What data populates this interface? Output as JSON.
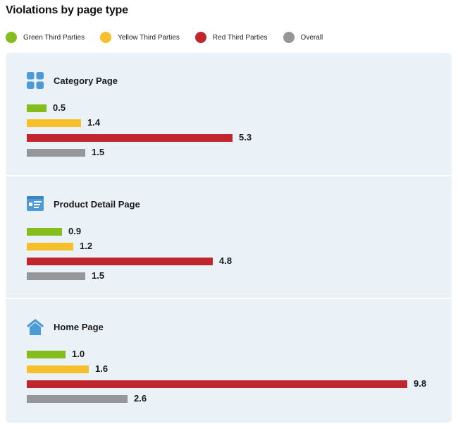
{
  "title": "Violations by page type",
  "legend": [
    {
      "label": "Green Third Parties",
      "color": "#84bd1c"
    },
    {
      "label": "Yellow Third Parties",
      "color": "#f7c02b"
    },
    {
      "label": "Red Third Parties",
      "color": "#c0262d"
    },
    {
      "label": "Overall",
      "color": "#949699"
    }
  ],
  "sections": [
    {
      "title": "Category Page",
      "icon": "grid-icon"
    },
    {
      "title": "Product Detail Page",
      "icon": "product-card-icon"
    },
    {
      "title": "Home Page",
      "icon": "house-icon"
    }
  ],
  "chart_data": {
    "type": "bar",
    "orientation": "horizontal",
    "title": "Violations by page type",
    "categories": [
      "Category Page",
      "Product Detail Page",
      "Home Page"
    ],
    "series": [
      {
        "name": "Green Third Parties",
        "color": "#84bd1c",
        "values": [
          0.5,
          0.9,
          1.0
        ],
        "labels": [
          "0.5",
          "0.9",
          "1.0"
        ]
      },
      {
        "name": "Yellow Third Parties",
        "color": "#f7c02b",
        "values": [
          1.4,
          1.2,
          1.6
        ],
        "labels": [
          "1.4",
          "1.2",
          "1.6"
        ]
      },
      {
        "name": "Red Third Parties",
        "color": "#c0262d",
        "values": [
          5.3,
          4.8,
          9.8
        ],
        "labels": [
          "5.3",
          "4.8",
          "9.8"
        ]
      },
      {
        "name": "Overall",
        "color": "#949699",
        "values": [
          1.5,
          1.5,
          2.6
        ],
        "labels": [
          "1.5",
          "1.5",
          "2.6"
        ]
      }
    ],
    "xlim": [
      0,
      9.8
    ],
    "grid": false,
    "legend_position": "top-left"
  }
}
